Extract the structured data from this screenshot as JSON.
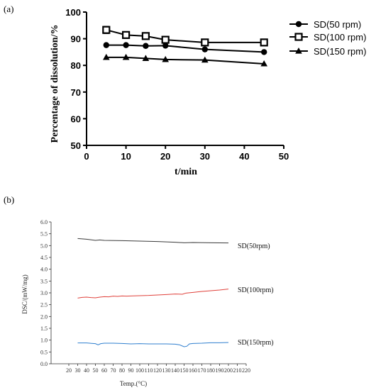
{
  "chart_data": [
    {
      "panel": "(a)",
      "type": "line",
      "xlabel": "t/min",
      "ylabel": "Percentage of dissolution/%",
      "xlim": [
        0,
        50
      ],
      "ylim": [
        50,
        100
      ],
      "xticks": [
        0,
        10,
        20,
        30,
        40,
        50
      ],
      "yticks": [
        50,
        60,
        70,
        80,
        90,
        100
      ],
      "legend_position": "top-right",
      "series": [
        {
          "name": "SD(50 rpm)",
          "marker": "circle",
          "x": [
            5,
            10,
            15,
            20,
            30,
            45
          ],
          "y": [
            87.6,
            87.6,
            87.3,
            87.4,
            86.0,
            85.0
          ],
          "err": [
            0,
            0,
            0,
            0,
            0,
            0
          ]
        },
        {
          "name": "SD(100 rpm)",
          "marker": "square-open",
          "x": [
            5,
            10,
            15,
            20,
            30,
            45
          ],
          "y": [
            93.3,
            91.4,
            91.0,
            89.6,
            88.6,
            88.6
          ],
          "err": [
            1.3,
            1.2,
            1.1,
            0.6,
            0.5,
            1.0
          ]
        },
        {
          "name": "SD(150 rpm)",
          "marker": "triangle",
          "x": [
            5,
            10,
            15,
            20,
            30,
            45
          ],
          "y": [
            83.0,
            83.0,
            82.6,
            82.2,
            82.0,
            80.6
          ],
          "err": [
            0,
            0,
            0,
            0,
            0,
            0
          ]
        }
      ]
    },
    {
      "panel": "(b)",
      "type": "line",
      "xlabel": "Temp.(°C)",
      "ylabel": "DSC/(mW/mg)",
      "xlim": [
        0,
        220
      ],
      "ylim": [
        0,
        6
      ],
      "xticks": [
        20,
        30,
        40,
        50,
        60,
        70,
        80,
        90,
        100,
        110,
        120,
        130,
        140,
        150,
        160,
        170,
        180,
        190,
        200,
        210,
        220
      ],
      "yticks": [
        "0.0",
        "0.5",
        "1.0",
        "1.5",
        "2.0",
        "2.5",
        "3.0",
        "3.5",
        "4.0",
        "4.5",
        "5.0",
        "5.5",
        "6.0"
      ],
      "series": [
        {
          "name": "SD(50rpm)",
          "color": "#3a3a3a",
          "x": [
            30,
            40,
            50,
            55,
            60,
            80,
            100,
            120,
            140,
            150,
            160,
            180,
            200
          ],
          "y": [
            5.3,
            5.27,
            5.22,
            5.24,
            5.22,
            5.21,
            5.19,
            5.17,
            5.14,
            5.12,
            5.13,
            5.12,
            5.11
          ]
        },
        {
          "name": "SD(100rpm)",
          "color": "#e0413b",
          "x": [
            30,
            35,
            40,
            45,
            50,
            55,
            60,
            65,
            70,
            75,
            80,
            85,
            90,
            100,
            110,
            120,
            130,
            140,
            148,
            152,
            160,
            170,
            180,
            190,
            200
          ],
          "y": [
            2.78,
            2.81,
            2.82,
            2.8,
            2.79,
            2.82,
            2.84,
            2.83,
            2.86,
            2.85,
            2.87,
            2.86,
            2.87,
            2.88,
            2.89,
            2.91,
            2.93,
            2.95,
            2.94,
            2.99,
            3.02,
            3.06,
            3.09,
            3.12,
            3.16
          ]
        },
        {
          "name": "SD(150rpm)",
          "color": "#2f7fcf",
          "x": [
            30,
            40,
            50,
            53,
            56,
            60,
            70,
            80,
            90,
            100,
            110,
            120,
            130,
            140,
            145,
            150,
            153,
            156,
            160,
            170,
            180,
            190,
            200
          ],
          "y": [
            0.88,
            0.88,
            0.85,
            0.8,
            0.85,
            0.87,
            0.87,
            0.86,
            0.84,
            0.85,
            0.84,
            0.84,
            0.84,
            0.83,
            0.8,
            0.72,
            0.74,
            0.84,
            0.86,
            0.87,
            0.89,
            0.89,
            0.9
          ]
        }
      ]
    }
  ]
}
